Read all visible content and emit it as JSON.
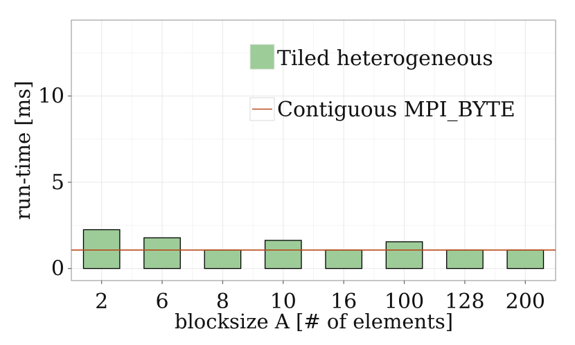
{
  "chart_data": {
    "type": "bar",
    "xlabel": "blocksize A [# of elements]",
    "ylabel": "run-time [ms]",
    "categories": [
      "2",
      "6",
      "8",
      "10",
      "16",
      "100",
      "128",
      "200"
    ],
    "series": [
      {
        "name": "Tiled heterogeneous",
        "values": [
          2.25,
          1.78,
          1.07,
          1.63,
          1.07,
          1.55,
          1.07,
          1.07
        ]
      }
    ],
    "reference_line": {
      "name": "Contiguous MPI_BYTE",
      "value": 1.07
    },
    "ylim": [
      -0.7,
      14.4
    ],
    "yticks": [
      "0",
      "5",
      "10"
    ],
    "grid": true,
    "legend_position": "top-right",
    "colors": {
      "bar": "#9dcc98",
      "line": "#b94a1a",
      "grid_major": "#ebebeb",
      "grid_minor": "#f4f4f4"
    }
  }
}
